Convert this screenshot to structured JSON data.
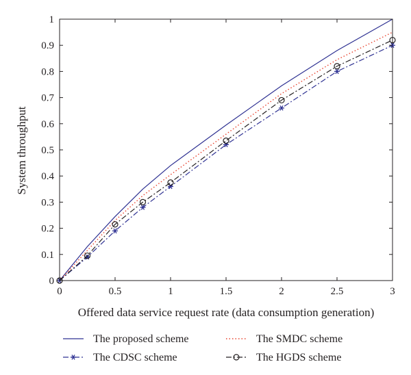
{
  "chart_data": {
    "type": "line",
    "xlabel": "Offered data service request rate (data consumption generation)",
    "ylabel": "System throughput",
    "xlim": [
      0,
      3
    ],
    "ylim": [
      0,
      1
    ],
    "x_ticks": [
      "0",
      "0.5",
      "1",
      "1.5",
      "2",
      "2.5",
      "3"
    ],
    "y_ticks": [
      "0",
      "0.1",
      "0.2",
      "0.3",
      "0.4",
      "0.5",
      "0.6",
      "0.7",
      "0.8",
      "0.9",
      "1"
    ],
    "grid": false,
    "legend_position": "bottom",
    "x": [
      0,
      0.25,
      0.5,
      0.75,
      1,
      1.5,
      2,
      2.5,
      3
    ],
    "series": [
      {
        "name": "The proposed scheme",
        "values": [
          0,
          0.13,
          0.245,
          0.35,
          0.44,
          0.595,
          0.745,
          0.88,
          1.0
        ],
        "color": "#2e3192",
        "dash": "solid",
        "marker": "none"
      },
      {
        "name": "The SMDC scheme",
        "values": [
          0,
          0.115,
          0.23,
          0.325,
          0.405,
          0.56,
          0.715,
          0.845,
          0.95
        ],
        "color": "#e8412c",
        "dash": "dotted",
        "marker": "none"
      },
      {
        "name": "The CDSC scheme",
        "values": [
          0,
          0.09,
          0.19,
          0.28,
          0.36,
          0.52,
          0.66,
          0.8,
          0.9
        ],
        "color": "#2e3192",
        "dash": "dashdot",
        "marker": "asterisk"
      },
      {
        "name": "The HGDS scheme",
        "values": [
          0,
          0.095,
          0.215,
          0.3,
          0.375,
          0.535,
          0.69,
          0.82,
          0.92
        ],
        "color": "#231f20",
        "dash": "dashdot",
        "marker": "circle"
      }
    ]
  }
}
